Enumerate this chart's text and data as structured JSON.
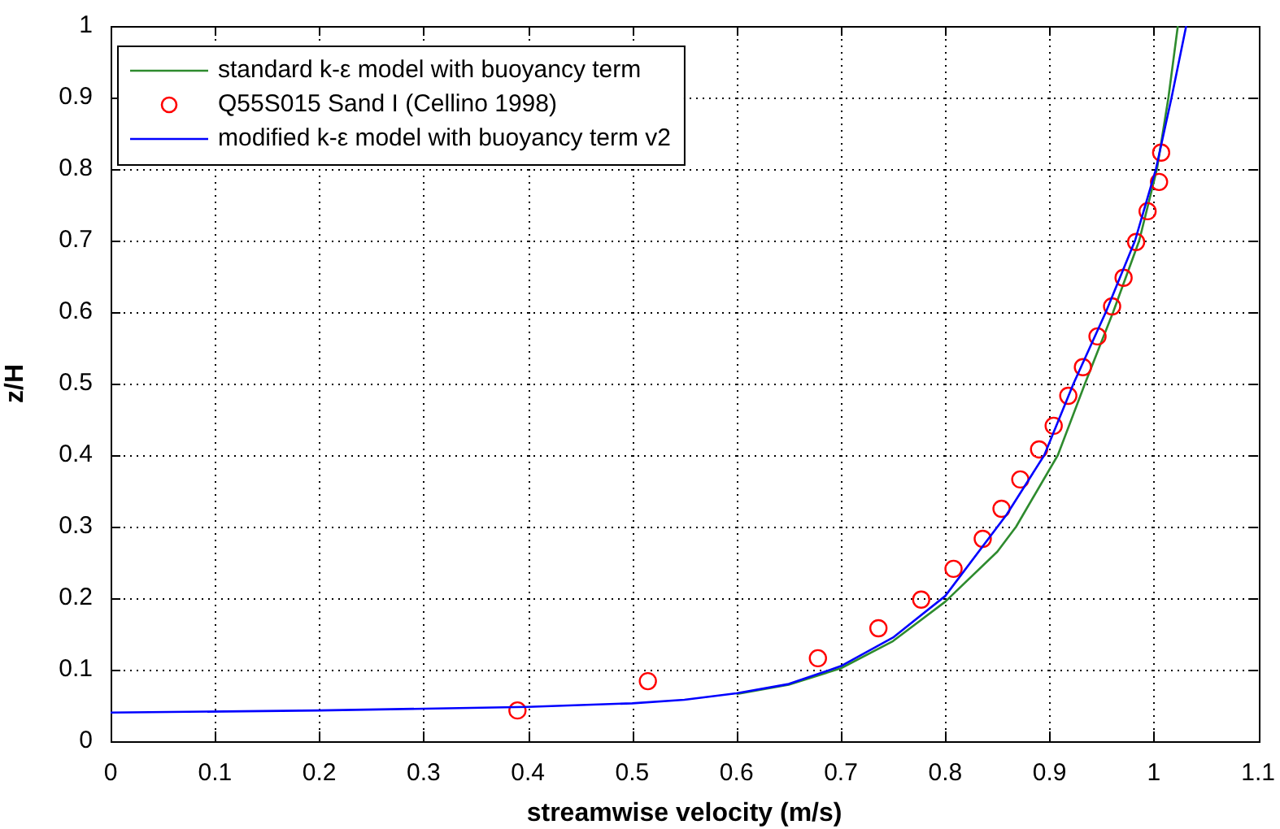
{
  "chart_data": {
    "type": "line",
    "xlabel": "streamwise velocity (m/s)",
    "ylabel": "z/H",
    "xlim": [
      0,
      1.1
    ],
    "xticks": [
      0,
      0.1,
      0.2,
      0.3,
      0.4,
      0.5,
      0.6,
      0.7,
      0.8,
      0.9,
      1,
      1.1
    ],
    "ylim": [
      0,
      1
    ],
    "yticks": [
      0,
      0.1,
      0.2,
      0.3,
      0.4,
      0.5,
      0.6,
      0.7,
      0.8,
      0.9,
      1
    ],
    "grid": true,
    "legend": "top left",
    "series": [
      {
        "name": "standard k-ε model with buoyancy term",
        "color": "#2e8b2e",
        "marker": "none",
        "x": [
          0.6,
          0.65,
          0.7,
          0.75,
          0.8,
          0.85,
          0.868,
          0.908,
          0.934,
          0.961,
          0.986,
          1.003,
          1.014,
          1.023
        ],
        "values": [
          0.066,
          0.079,
          0.102,
          0.14,
          0.195,
          0.265,
          0.3,
          0.4,
          0.5,
          0.6,
          0.7,
          0.8,
          0.9,
          1
        ]
      },
      {
        "name": "Q55S015 Sand I (Cellino 1998)",
        "type": "scatter",
        "color": "#ff0000",
        "marker": "circle",
        "x": [
          0.39,
          0.515,
          0.678,
          0.736,
          0.777,
          0.808,
          0.836,
          0.854,
          0.872,
          0.89,
          0.904,
          0.918,
          0.932,
          0.946,
          0.96,
          0.971,
          0.983,
          0.994,
          1.005,
          1.007
        ],
        "values": [
          0.043,
          0.084,
          0.116,
          0.158,
          0.198,
          0.241,
          0.283,
          0.325,
          0.366,
          0.408,
          0.441,
          0.483,
          0.523,
          0.566,
          0.608,
          0.648,
          0.698,
          0.741,
          0.782,
          0.823
        ]
      },
      {
        "name": "modified k-ε model with buoyancy term v2",
        "color": "#0000ff",
        "marker": "none",
        "x": [
          0,
          0.2,
          0.4,
          0.5,
          0.55,
          0.6,
          0.65,
          0.7,
          0.75,
          0.8,
          0.859,
          0.895,
          0.923,
          0.954,
          0.982,
          1.002,
          1.017,
          1.031
        ],
        "values": [
          0.04,
          0.043,
          0.048,
          0.053,
          0.058,
          0.067,
          0.08,
          0.105,
          0.145,
          0.203,
          0.317,
          0.4,
          0.5,
          0.6,
          0.7,
          0.8,
          0.9,
          1
        ]
      }
    ]
  }
}
